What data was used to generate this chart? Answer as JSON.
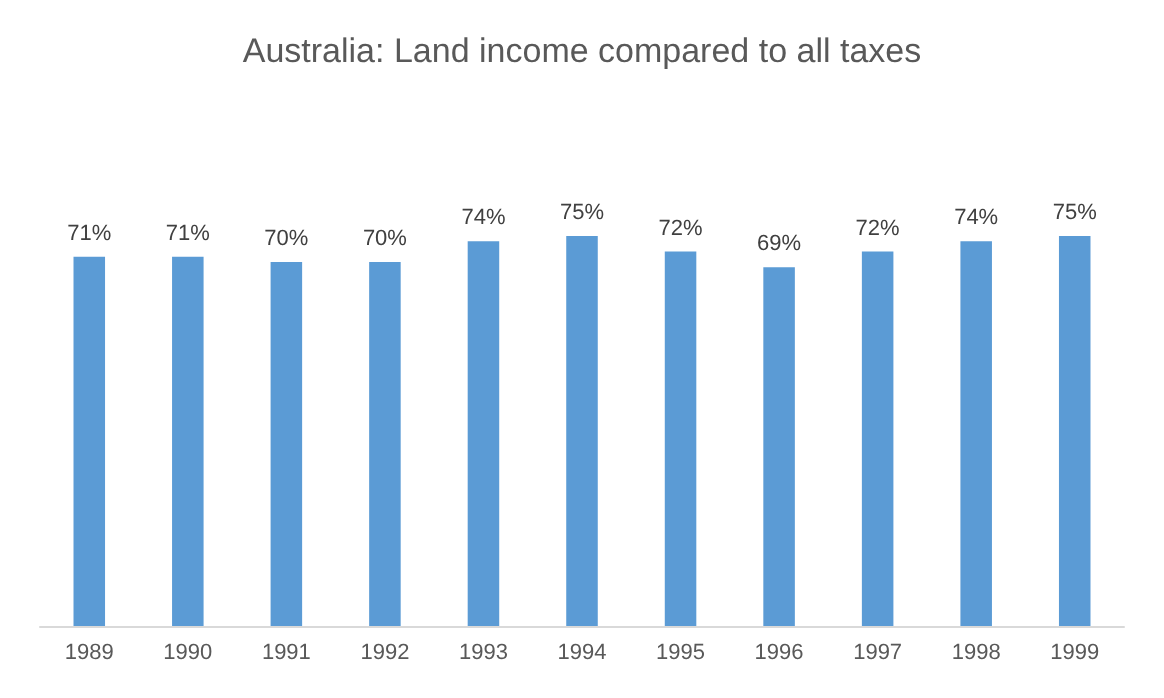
{
  "chart_data": {
    "type": "bar",
    "title": "Australia: Land income compared to all taxes",
    "categories": [
      "1989",
      "1990",
      "1991",
      "1992",
      "1993",
      "1994",
      "1995",
      "1996",
      "1997",
      "1998",
      "1999"
    ],
    "values": [
      71,
      71,
      70,
      70,
      74,
      75,
      72,
      69,
      72,
      74,
      75
    ],
    "value_labels": [
      "71%",
      "71%",
      "70%",
      "70%",
      "74%",
      "75%",
      "72%",
      "69%",
      "72%",
      "74%",
      "75%"
    ],
    "color": "#5b9bd5"
  }
}
